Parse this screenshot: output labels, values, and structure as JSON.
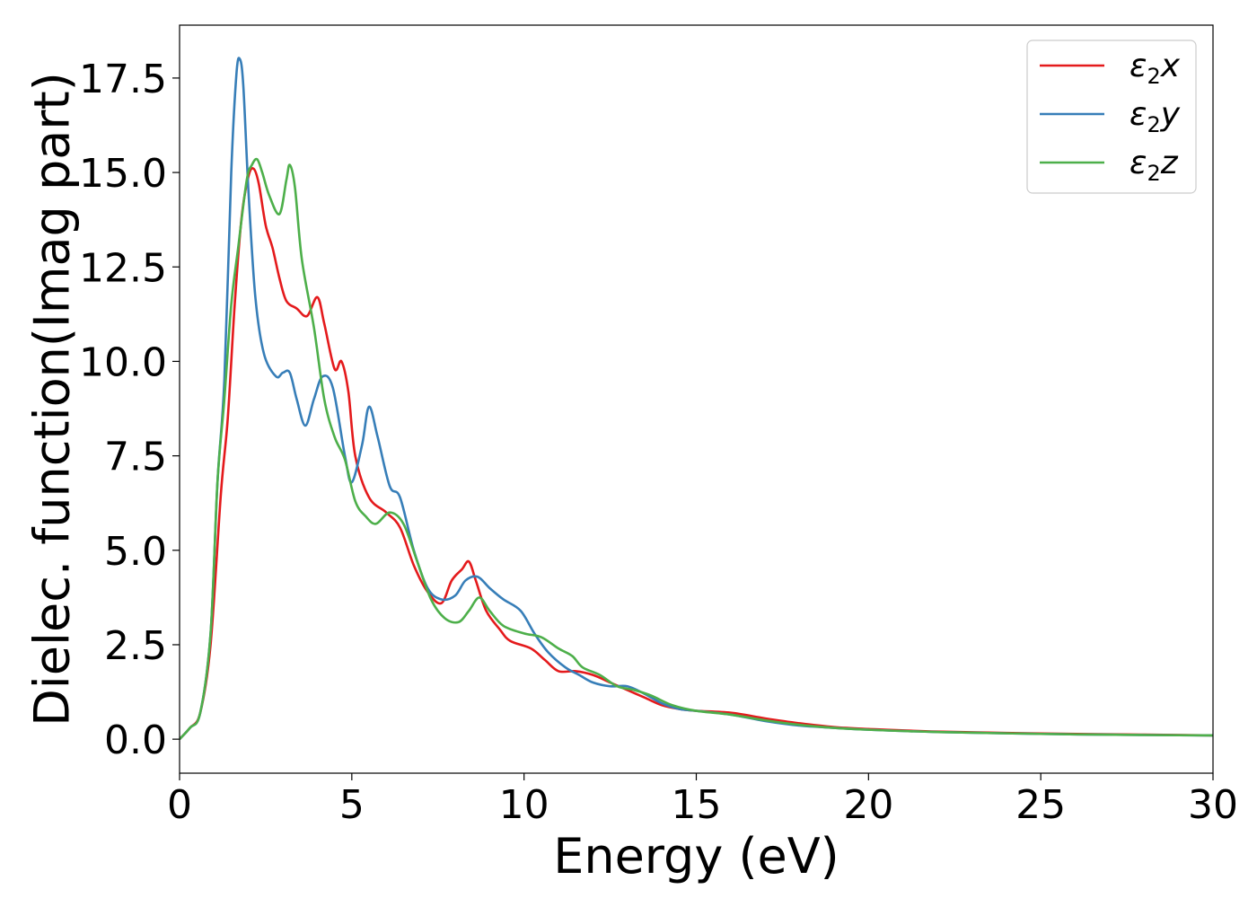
{
  "chart_data": {
    "type": "line",
    "title": "",
    "xlabel": "Energy (eV)",
    "ylabel": "Dielec. function(Imag part)",
    "xlim": [
      0,
      30
    ],
    "ylim": [
      -0.9,
      18.9
    ],
    "xticks": [
      0,
      5,
      10,
      15,
      20,
      25,
      30
    ],
    "yticks": [
      0.0,
      2.5,
      5.0,
      7.5,
      10.0,
      12.5,
      15.0,
      17.5
    ],
    "ytick_labels": [
      "0.0",
      "2.5",
      "5.0",
      "7.5",
      "10.0",
      "12.5",
      "15.0",
      "17.5"
    ],
    "grid": false,
    "legend_position": "top-right",
    "series": [
      {
        "name": "ε₂x",
        "legend_base": "ε",
        "legend_sub": "2",
        "legend_var": "x",
        "color": "#e41a1c",
        "points": [
          [
            0,
            0
          ],
          [
            0.3,
            0.3
          ],
          [
            0.6,
            0.7
          ],
          [
            0.9,
            2.5
          ],
          [
            1.2,
            6.5
          ],
          [
            1.4,
            8.5
          ],
          [
            1.6,
            11.5
          ],
          [
            1.8,
            13.8
          ],
          [
            2.0,
            14.9
          ],
          [
            2.15,
            15.1
          ],
          [
            2.3,
            14.7
          ],
          [
            2.5,
            13.6
          ],
          [
            2.7,
            13.0
          ],
          [
            2.9,
            12.2
          ],
          [
            3.1,
            11.6
          ],
          [
            3.4,
            11.4
          ],
          [
            3.7,
            11.2
          ],
          [
            4.0,
            11.7
          ],
          [
            4.2,
            11.0
          ],
          [
            4.5,
            9.8
          ],
          [
            4.7,
            10.0
          ],
          [
            4.9,
            9.2
          ],
          [
            5.1,
            7.5
          ],
          [
            5.5,
            6.4
          ],
          [
            6.0,
            6.0
          ],
          [
            6.4,
            5.6
          ],
          [
            6.8,
            4.6
          ],
          [
            7.2,
            3.9
          ],
          [
            7.6,
            3.6
          ],
          [
            7.9,
            4.2
          ],
          [
            8.2,
            4.5
          ],
          [
            8.4,
            4.7
          ],
          [
            8.6,
            4.2
          ],
          [
            8.9,
            3.4
          ],
          [
            9.3,
            2.9
          ],
          [
            9.6,
            2.6
          ],
          [
            10.2,
            2.4
          ],
          [
            10.6,
            2.1
          ],
          [
            11.0,
            1.8
          ],
          [
            11.5,
            1.8
          ],
          [
            12.0,
            1.7
          ],
          [
            12.5,
            1.5
          ],
          [
            13.0,
            1.3
          ],
          [
            13.5,
            1.1
          ],
          [
            14.0,
            0.9
          ],
          [
            14.5,
            0.8
          ],
          [
            15.0,
            0.75
          ],
          [
            16.0,
            0.7
          ],
          [
            17.0,
            0.55
          ],
          [
            18.0,
            0.42
          ],
          [
            19.0,
            0.32
          ],
          [
            20.0,
            0.27
          ],
          [
            22.0,
            0.2
          ],
          [
            25.0,
            0.15
          ],
          [
            28.0,
            0.12
          ],
          [
            30.0,
            0.1
          ]
        ]
      },
      {
        "name": "ε₂y",
        "legend_base": "ε",
        "legend_sub": "2",
        "legend_var": "y",
        "color": "#377eb8",
        "points": [
          [
            0,
            0
          ],
          [
            0.3,
            0.3
          ],
          [
            0.6,
            0.7
          ],
          [
            0.9,
            2.8
          ],
          [
            1.1,
            6.8
          ],
          [
            1.3,
            9.5
          ],
          [
            1.5,
            15.0
          ],
          [
            1.65,
            17.6
          ],
          [
            1.75,
            18.0
          ],
          [
            1.85,
            17.3
          ],
          [
            2.0,
            14.5
          ],
          [
            2.2,
            11.7
          ],
          [
            2.45,
            10.2
          ],
          [
            2.8,
            9.6
          ],
          [
            3.0,
            9.7
          ],
          [
            3.2,
            9.7
          ],
          [
            3.4,
            9.0
          ],
          [
            3.65,
            8.3
          ],
          [
            3.9,
            9.0
          ],
          [
            4.15,
            9.6
          ],
          [
            4.45,
            9.3
          ],
          [
            4.8,
            7.5
          ],
          [
            5.0,
            6.8
          ],
          [
            5.3,
            7.8
          ],
          [
            5.5,
            8.8
          ],
          [
            5.75,
            8.0
          ],
          [
            6.1,
            6.7
          ],
          [
            6.4,
            6.4
          ],
          [
            6.8,
            5.0
          ],
          [
            7.2,
            4.0
          ],
          [
            7.6,
            3.7
          ],
          [
            8.0,
            3.8
          ],
          [
            8.3,
            4.2
          ],
          [
            8.65,
            4.3
          ],
          [
            9.0,
            4.0
          ],
          [
            9.4,
            3.7
          ],
          [
            9.9,
            3.4
          ],
          [
            10.3,
            2.8
          ],
          [
            10.7,
            2.3
          ],
          [
            11.2,
            1.9
          ],
          [
            11.6,
            1.7
          ],
          [
            12.0,
            1.5
          ],
          [
            12.5,
            1.4
          ],
          [
            13.0,
            1.4
          ],
          [
            13.5,
            1.2
          ],
          [
            14.0,
            0.95
          ],
          [
            14.5,
            0.8
          ],
          [
            15.0,
            0.75
          ],
          [
            16.0,
            0.65
          ],
          [
            17.0,
            0.48
          ],
          [
            18.0,
            0.36
          ],
          [
            19.0,
            0.3
          ],
          [
            20.0,
            0.25
          ],
          [
            22.0,
            0.19
          ],
          [
            25.0,
            0.14
          ],
          [
            28.0,
            0.11
          ],
          [
            30.0,
            0.1
          ]
        ]
      },
      {
        "name": "ε₂z",
        "legend_base": "ε",
        "legend_sub": "2",
        "legend_var": "z",
        "color": "#4daf4a",
        "points": [
          [
            0,
            0
          ],
          [
            0.3,
            0.3
          ],
          [
            0.6,
            0.7
          ],
          [
            0.9,
            2.8
          ],
          [
            1.1,
            6.8
          ],
          [
            1.3,
            9.0
          ],
          [
            1.5,
            11.5
          ],
          [
            1.7,
            13.0
          ],
          [
            1.95,
            14.8
          ],
          [
            2.1,
            15.2
          ],
          [
            2.25,
            15.35
          ],
          [
            2.4,
            15.0
          ],
          [
            2.6,
            14.4
          ],
          [
            2.9,
            13.9
          ],
          [
            3.1,
            14.8
          ],
          [
            3.2,
            15.2
          ],
          [
            3.35,
            14.6
          ],
          [
            3.55,
            12.7
          ],
          [
            3.9,
            10.9
          ],
          [
            4.2,
            9.0
          ],
          [
            4.5,
            8.0
          ],
          [
            4.8,
            7.4
          ],
          [
            5.1,
            6.3
          ],
          [
            5.4,
            5.9
          ],
          [
            5.7,
            5.7
          ],
          [
            6.1,
            6.0
          ],
          [
            6.5,
            5.7
          ],
          [
            6.9,
            4.7
          ],
          [
            7.3,
            3.7
          ],
          [
            7.7,
            3.2
          ],
          [
            8.1,
            3.1
          ],
          [
            8.4,
            3.4
          ],
          [
            8.7,
            3.75
          ],
          [
            9.0,
            3.4
          ],
          [
            9.4,
            3.0
          ],
          [
            10.0,
            2.8
          ],
          [
            10.5,
            2.7
          ],
          [
            11.0,
            2.4
          ],
          [
            11.4,
            2.2
          ],
          [
            11.7,
            1.9
          ],
          [
            12.2,
            1.7
          ],
          [
            12.7,
            1.4
          ],
          [
            13.2,
            1.3
          ],
          [
            13.7,
            1.15
          ],
          [
            14.3,
            0.9
          ],
          [
            15.0,
            0.75
          ],
          [
            16.0,
            0.65
          ],
          [
            17.0,
            0.5
          ],
          [
            18.0,
            0.38
          ],
          [
            19.0,
            0.3
          ],
          [
            20.0,
            0.25
          ],
          [
            22.0,
            0.19
          ],
          [
            25.0,
            0.14
          ],
          [
            28.0,
            0.11
          ],
          [
            30.0,
            0.1
          ]
        ]
      }
    ]
  }
}
